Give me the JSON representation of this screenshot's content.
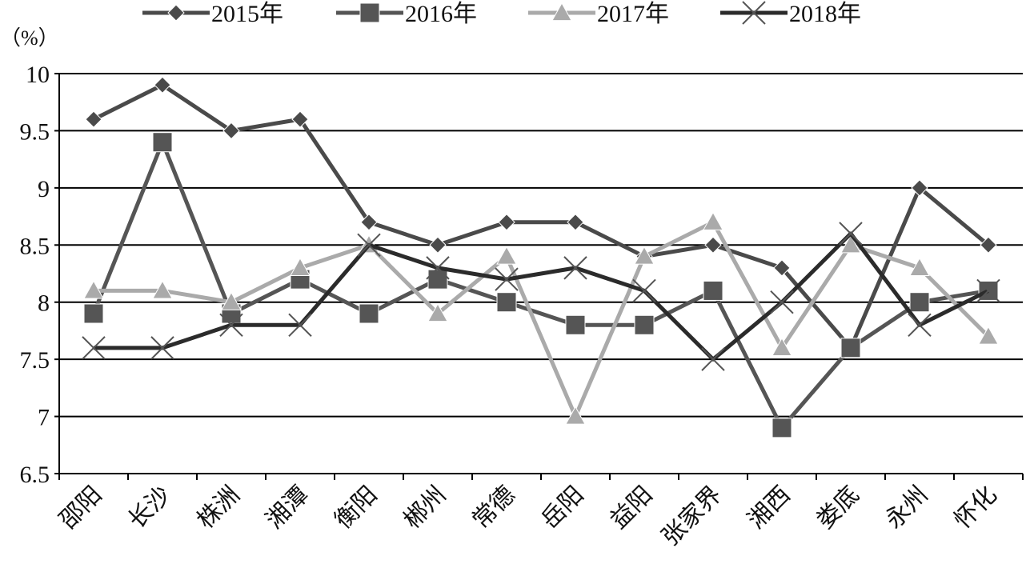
{
  "chart_data": {
    "type": "line",
    "unit_label": "（%）",
    "categories": [
      "邵阳",
      "长沙",
      "株洲",
      "湘潭",
      "衡阳",
      "郴州",
      "常德",
      "岳阳",
      "益阳",
      "张家界",
      "湘西",
      "娄底",
      "永州",
      "怀化"
    ],
    "ylim": [
      6.5,
      10
    ],
    "yticks": [
      "6.5",
      "7",
      "7.5",
      "8",
      "8.5",
      "9",
      "9.5",
      "10"
    ],
    "grid": true,
    "legend_position": "top",
    "series": [
      {
        "name": "2015年",
        "marker": "diamond",
        "color": "#4a4a4a",
        "values": [
          9.6,
          9.9,
          9.5,
          9.6,
          8.7,
          8.5,
          8.7,
          8.7,
          8.4,
          8.5,
          8.3,
          7.6,
          9.0,
          8.5
        ]
      },
      {
        "name": "2016年",
        "marker": "square",
        "color": "#555555",
        "values": [
          7.9,
          9.4,
          7.9,
          8.2,
          7.9,
          8.2,
          8.0,
          7.8,
          7.8,
          8.1,
          6.9,
          7.6,
          8.0,
          8.1
        ]
      },
      {
        "name": "2017年",
        "marker": "triangle",
        "color": "#aaaaaa",
        "values": [
          8.1,
          8.1,
          8.0,
          8.3,
          8.5,
          7.9,
          8.4,
          7.0,
          8.4,
          8.7,
          7.6,
          8.5,
          8.3,
          7.7
        ]
      },
      {
        "name": "2018年",
        "marker": "x",
        "color": "#2b2b2b",
        "values": [
          7.6,
          7.6,
          7.8,
          7.8,
          8.5,
          8.3,
          8.2,
          8.3,
          8.1,
          7.5,
          8.0,
          8.6,
          7.8,
          8.1
        ]
      }
    ]
  }
}
